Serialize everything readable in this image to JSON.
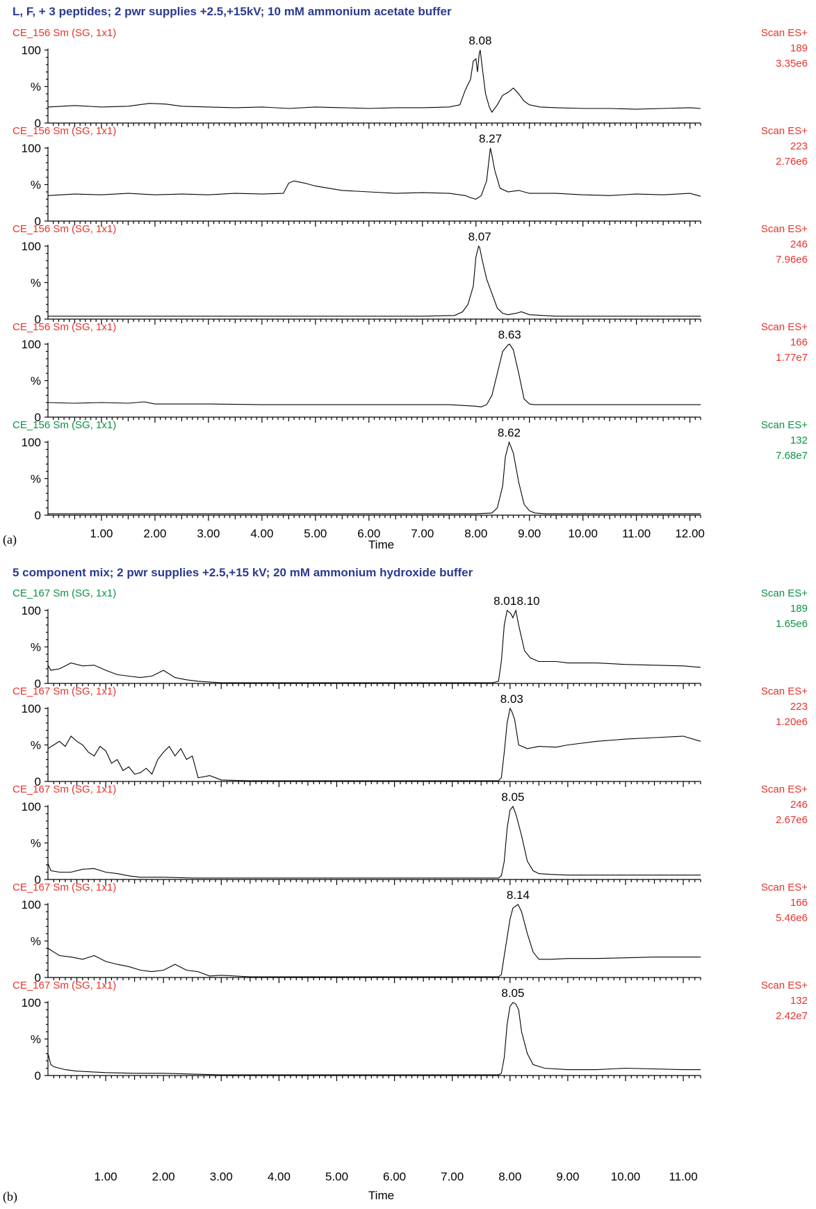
{
  "colors": {
    "title": "#2b3990",
    "red": "#e8322b",
    "green": "#0a9344",
    "trace": "#000000"
  },
  "chart_data": [
    {
      "type": "line",
      "panel_label": "(a)",
      "title": "L, F, + 3 peptides; 2 pwr supplies +2.5,+15kV; 10 mM ammonium acetate buffer",
      "xlabel": "Time",
      "xlim": [
        0.0,
        12.2
      ],
      "xticks": [
        "1.00",
        "2.00",
        "3.00",
        "4.00",
        "5.00",
        "6.00",
        "7.00",
        "8.00",
        "9.00",
        "10.00",
        "11.00",
        "12.00"
      ],
      "ylim": [
        0,
        100
      ],
      "yticks": [
        "0",
        "%",
        "100"
      ],
      "traces": [
        {
          "sample": "CE_156 Sm (SG, 1x1)",
          "mode": "Scan ES+",
          "mz": "189",
          "intensity": "3.35e6",
          "color": "red",
          "peak_labels": [
            {
              "x": 8.08,
              "text": "8.08"
            }
          ],
          "x": [
            0.0,
            0.5,
            1.0,
            1.5,
            1.9,
            2.2,
            2.5,
            3.0,
            3.5,
            4.0,
            4.5,
            5.0,
            5.5,
            6.0,
            6.5,
            7.0,
            7.5,
            7.7,
            7.8,
            7.9,
            7.95,
            8.0,
            8.03,
            8.06,
            8.08,
            8.12,
            8.18,
            8.25,
            8.3,
            8.4,
            8.5,
            8.6,
            8.7,
            8.8,
            8.9,
            9.0,
            9.2,
            9.5,
            10.0,
            10.5,
            11.0,
            11.5,
            12.0,
            12.2
          ],
          "y": [
            22,
            24,
            22,
            23,
            27,
            26,
            23,
            22,
            21,
            22,
            20,
            22,
            21,
            20,
            21,
            21,
            22,
            25,
            45,
            60,
            85,
            88,
            70,
            95,
            100,
            75,
            40,
            22,
            15,
            25,
            38,
            42,
            48,
            40,
            30,
            25,
            22,
            21,
            20,
            20,
            19,
            20,
            21,
            20
          ]
        },
        {
          "sample": "CE_156 Sm (SG, 1x1)",
          "mode": "Scan ES+",
          "mz": "223",
          "intensity": "2.76e6",
          "color": "red",
          "peak_labels": [
            {
              "x": 8.27,
              "text": "8.27"
            }
          ],
          "x": [
            0.0,
            0.5,
            1.0,
            1.5,
            2.0,
            2.5,
            3.0,
            3.5,
            4.0,
            4.4,
            4.5,
            4.6,
            4.8,
            5.0,
            5.5,
            6.0,
            6.5,
            7.0,
            7.5,
            7.8,
            7.9,
            8.0,
            8.1,
            8.2,
            8.25,
            8.27,
            8.3,
            8.35,
            8.45,
            8.6,
            8.8,
            9.0,
            9.5,
            10.0,
            10.5,
            11.0,
            11.5,
            12.0,
            12.2
          ],
          "y": [
            35,
            37,
            36,
            38,
            36,
            37,
            36,
            38,
            37,
            38,
            52,
            55,
            52,
            48,
            42,
            40,
            38,
            39,
            38,
            35,
            32,
            30,
            35,
            55,
            88,
            100,
            90,
            70,
            45,
            40,
            42,
            38,
            38,
            36,
            35,
            37,
            36,
            38,
            34
          ]
        },
        {
          "sample": "CE_156 Sm (SG, 1x1)",
          "mode": "Scan ES+",
          "mz": "246",
          "intensity": "7.96e6",
          "color": "red",
          "peak_labels": [
            {
              "x": 8.07,
              "text": "8.07"
            }
          ],
          "x": [
            0.0,
            1.0,
            2.0,
            3.0,
            4.0,
            5.0,
            6.0,
            7.0,
            7.6,
            7.75,
            7.85,
            7.95,
            8.0,
            8.05,
            8.07,
            8.12,
            8.2,
            8.3,
            8.4,
            8.5,
            8.6,
            8.75,
            8.85,
            9.0,
            9.5,
            10.0,
            11.0,
            12.0,
            12.2
          ],
          "y": [
            4,
            4,
            4,
            4,
            4,
            4,
            4,
            4,
            5,
            10,
            20,
            45,
            85,
            100,
            98,
            80,
            55,
            35,
            15,
            8,
            6,
            8,
            10,
            6,
            4,
            4,
            4,
            4,
            4
          ]
        },
        {
          "sample": "CE_156 Sm (SG, 1x1)",
          "mode": "Scan ES+",
          "mz": "166",
          "intensity": "1.77e7",
          "color": "red",
          "peak_labels": [
            {
              "x": 8.63,
              "text": "8.63"
            }
          ],
          "x": [
            0.0,
            0.5,
            1.0,
            1.5,
            1.8,
            2.0,
            2.5,
            3.0,
            4.0,
            5.0,
            6.0,
            7.0,
            7.5,
            8.0,
            8.1,
            8.2,
            8.3,
            8.4,
            8.5,
            8.6,
            8.63,
            8.7,
            8.8,
            8.9,
            9.0,
            9.1,
            9.5,
            10.0,
            11.0,
            12.0,
            12.2
          ],
          "y": [
            20,
            19,
            20,
            19,
            21,
            18,
            18,
            18,
            17,
            17,
            17,
            17,
            17,
            15,
            14,
            17,
            30,
            60,
            90,
            99,
            100,
            92,
            60,
            25,
            18,
            17,
            17,
            17,
            17,
            17,
            17
          ]
        },
        {
          "sample": "CE_156 Sm (SG, 1x1)",
          "mode": "Scan ES+",
          "mz": "132",
          "intensity": "7.68e7",
          "color": "green",
          "peak_labels": [
            {
              "x": 8.62,
              "text": "8.62"
            }
          ],
          "x": [
            0.0,
            1.0,
            2.0,
            3.0,
            4.0,
            5.0,
            6.0,
            7.0,
            8.0,
            8.3,
            8.4,
            8.5,
            8.55,
            8.62,
            8.7,
            8.8,
            8.9,
            9.0,
            9.1,
            9.3,
            10.0,
            11.0,
            12.0,
            12.2
          ],
          "y": [
            2,
            2,
            2,
            2,
            2,
            2,
            2,
            2,
            2,
            3,
            10,
            40,
            80,
            100,
            85,
            45,
            15,
            6,
            3,
            2,
            2,
            2,
            2,
            2
          ]
        }
      ]
    },
    {
      "type": "line",
      "panel_label": "(b)",
      "title": "5 component mix; 2 pwr supplies +2.5,+15 kV; 20 mM ammonium hydroxide buffer",
      "xlabel": "Time",
      "xlim": [
        0.0,
        11.3
      ],
      "xticks": [
        "1.00",
        "2.00",
        "3.00",
        "4.00",
        "5.00",
        "6.00",
        "7.00",
        "8.00",
        "9.00",
        "10.00",
        "11.00"
      ],
      "ylim": [
        0,
        100
      ],
      "yticks": [
        "0",
        "%",
        "100"
      ],
      "traces": [
        {
          "sample": "CE_167 Sm (SG, 1x1)",
          "mode": "Scan ES+",
          "mz": "189",
          "intensity": "1.65e6",
          "color": "green",
          "peak_labels": [
            {
              "x": 8.01,
              "text": "8.01"
            },
            {
              "x": 8.1,
              "text": "8.10"
            }
          ],
          "x": [
            0.0,
            0.05,
            0.2,
            0.4,
            0.6,
            0.8,
            1.0,
            1.2,
            1.4,
            1.6,
            1.8,
            2.0,
            2.2,
            2.4,
            2.6,
            3.0,
            3.5,
            4.0,
            5.0,
            6.0,
            7.0,
            7.7,
            7.8,
            7.85,
            7.9,
            7.95,
            8.01,
            8.05,
            8.1,
            8.15,
            8.25,
            8.35,
            8.5,
            8.8,
            9.0,
            9.5,
            10.0,
            10.5,
            11.0,
            11.3
          ],
          "y": [
            25,
            18,
            20,
            28,
            24,
            25,
            18,
            12,
            10,
            8,
            10,
            18,
            8,
            5,
            3,
            1,
            1,
            1,
            1,
            1,
            1,
            1,
            3,
            30,
            80,
            100,
            96,
            90,
            100,
            80,
            45,
            35,
            30,
            30,
            28,
            28,
            26,
            25,
            24,
            22
          ]
        },
        {
          "sample": "CE_167 Sm (SG, 1x1)",
          "mode": "Scan ES+",
          "mz": "223",
          "intensity": "1.20e6",
          "color": "red",
          "peak_labels": [
            {
              "x": 8.03,
              "text": "8.03"
            }
          ],
          "x": [
            0.0,
            0.1,
            0.2,
            0.3,
            0.4,
            0.5,
            0.6,
            0.7,
            0.8,
            0.9,
            1.0,
            1.1,
            1.2,
            1.3,
            1.4,
            1.5,
            1.6,
            1.7,
            1.8,
            1.9,
            2.0,
            2.1,
            2.2,
            2.3,
            2.4,
            2.5,
            2.6,
            2.8,
            3.0,
            3.5,
            4.0,
            5.0,
            6.0,
            7.0,
            7.8,
            7.85,
            7.9,
            7.95,
            8.0,
            8.03,
            8.08,
            8.15,
            8.3,
            8.5,
            8.8,
            9.0,
            9.5,
            10.0,
            10.5,
            11.0,
            11.3
          ],
          "y": [
            45,
            50,
            55,
            48,
            62,
            55,
            50,
            40,
            35,
            48,
            42,
            25,
            30,
            15,
            20,
            10,
            12,
            18,
            10,
            30,
            40,
            48,
            35,
            45,
            30,
            35,
            5,
            8,
            2,
            1,
            1,
            1,
            1,
            1,
            1,
            5,
            40,
            80,
            100,
            96,
            85,
            50,
            45,
            48,
            47,
            50,
            55,
            58,
            60,
            62,
            55
          ]
        },
        {
          "sample": "CE_167 Sm (SG, 1x1)",
          "mode": "Scan ES+",
          "mz": "246",
          "intensity": "2.67e6",
          "color": "red",
          "peak_labels": [
            {
              "x": 8.05,
              "text": "8.05"
            }
          ],
          "x": [
            0.0,
            0.05,
            0.2,
            0.4,
            0.6,
            0.8,
            1.0,
            1.2,
            1.4,
            1.6,
            2.0,
            2.5,
            3.0,
            4.0,
            5.0,
            6.0,
            7.0,
            7.8,
            7.85,
            7.9,
            7.95,
            8.0,
            8.05,
            8.1,
            8.2,
            8.3,
            8.4,
            8.5,
            8.7,
            9.0,
            9.5,
            10.0,
            11.0,
            11.3
          ],
          "y": [
            22,
            12,
            10,
            10,
            14,
            15,
            10,
            8,
            5,
            3,
            3,
            2,
            2,
            2,
            2,
            2,
            2,
            2,
            5,
            25,
            70,
            95,
            100,
            90,
            60,
            25,
            12,
            8,
            7,
            6,
            6,
            6,
            6,
            6
          ]
        },
        {
          "sample": "CE_167 Sm (SG, 1x1)",
          "mode": "Scan ES+",
          "mz": "166",
          "intensity": "5.46e6",
          "color": "red",
          "peak_labels": [
            {
              "x": 8.14,
              "text": "8.14"
            }
          ],
          "x": [
            0.0,
            0.1,
            0.2,
            0.4,
            0.6,
            0.8,
            1.0,
            1.2,
            1.4,
            1.6,
            1.8,
            2.0,
            2.2,
            2.4,
            2.6,
            2.8,
            3.0,
            3.5,
            4.0,
            5.0,
            6.0,
            7.0,
            7.8,
            7.85,
            7.9,
            8.0,
            8.05,
            8.1,
            8.14,
            8.2,
            8.3,
            8.4,
            8.5,
            8.7,
            9.0,
            9.5,
            10.0,
            10.5,
            11.0,
            11.3
          ],
          "y": [
            40,
            35,
            30,
            28,
            25,
            30,
            22,
            18,
            15,
            10,
            8,
            10,
            18,
            10,
            8,
            2,
            3,
            1,
            1,
            1,
            1,
            1,
            1,
            4,
            30,
            80,
            95,
            98,
            100,
            90,
            60,
            35,
            25,
            25,
            26,
            26,
            27,
            28,
            28,
            28
          ]
        },
        {
          "sample": "CE_167 Sm (SG, 1x1)",
          "mode": "Scan ES+",
          "mz": "132",
          "intensity": "2.42e7",
          "color": "red",
          "peak_labels": [
            {
              "x": 8.05,
              "text": "8.05"
            }
          ],
          "x": [
            0.0,
            0.05,
            0.1,
            0.3,
            0.5,
            1.0,
            1.5,
            2.0,
            2.5,
            3.0,
            4.0,
            5.0,
            6.0,
            7.0,
            7.8,
            7.85,
            7.9,
            7.95,
            8.0,
            8.05,
            8.1,
            8.15,
            8.2,
            8.3,
            8.4,
            8.6,
            9.0,
            9.5,
            10.0,
            11.0,
            11.3
          ],
          "y": [
            30,
            15,
            12,
            8,
            6,
            4,
            3,
            3,
            2,
            1,
            1,
            1,
            1,
            1,
            1,
            3,
            25,
            70,
            95,
            100,
            98,
            90,
            60,
            30,
            15,
            10,
            8,
            8,
            10,
            8,
            8
          ]
        }
      ]
    }
  ]
}
